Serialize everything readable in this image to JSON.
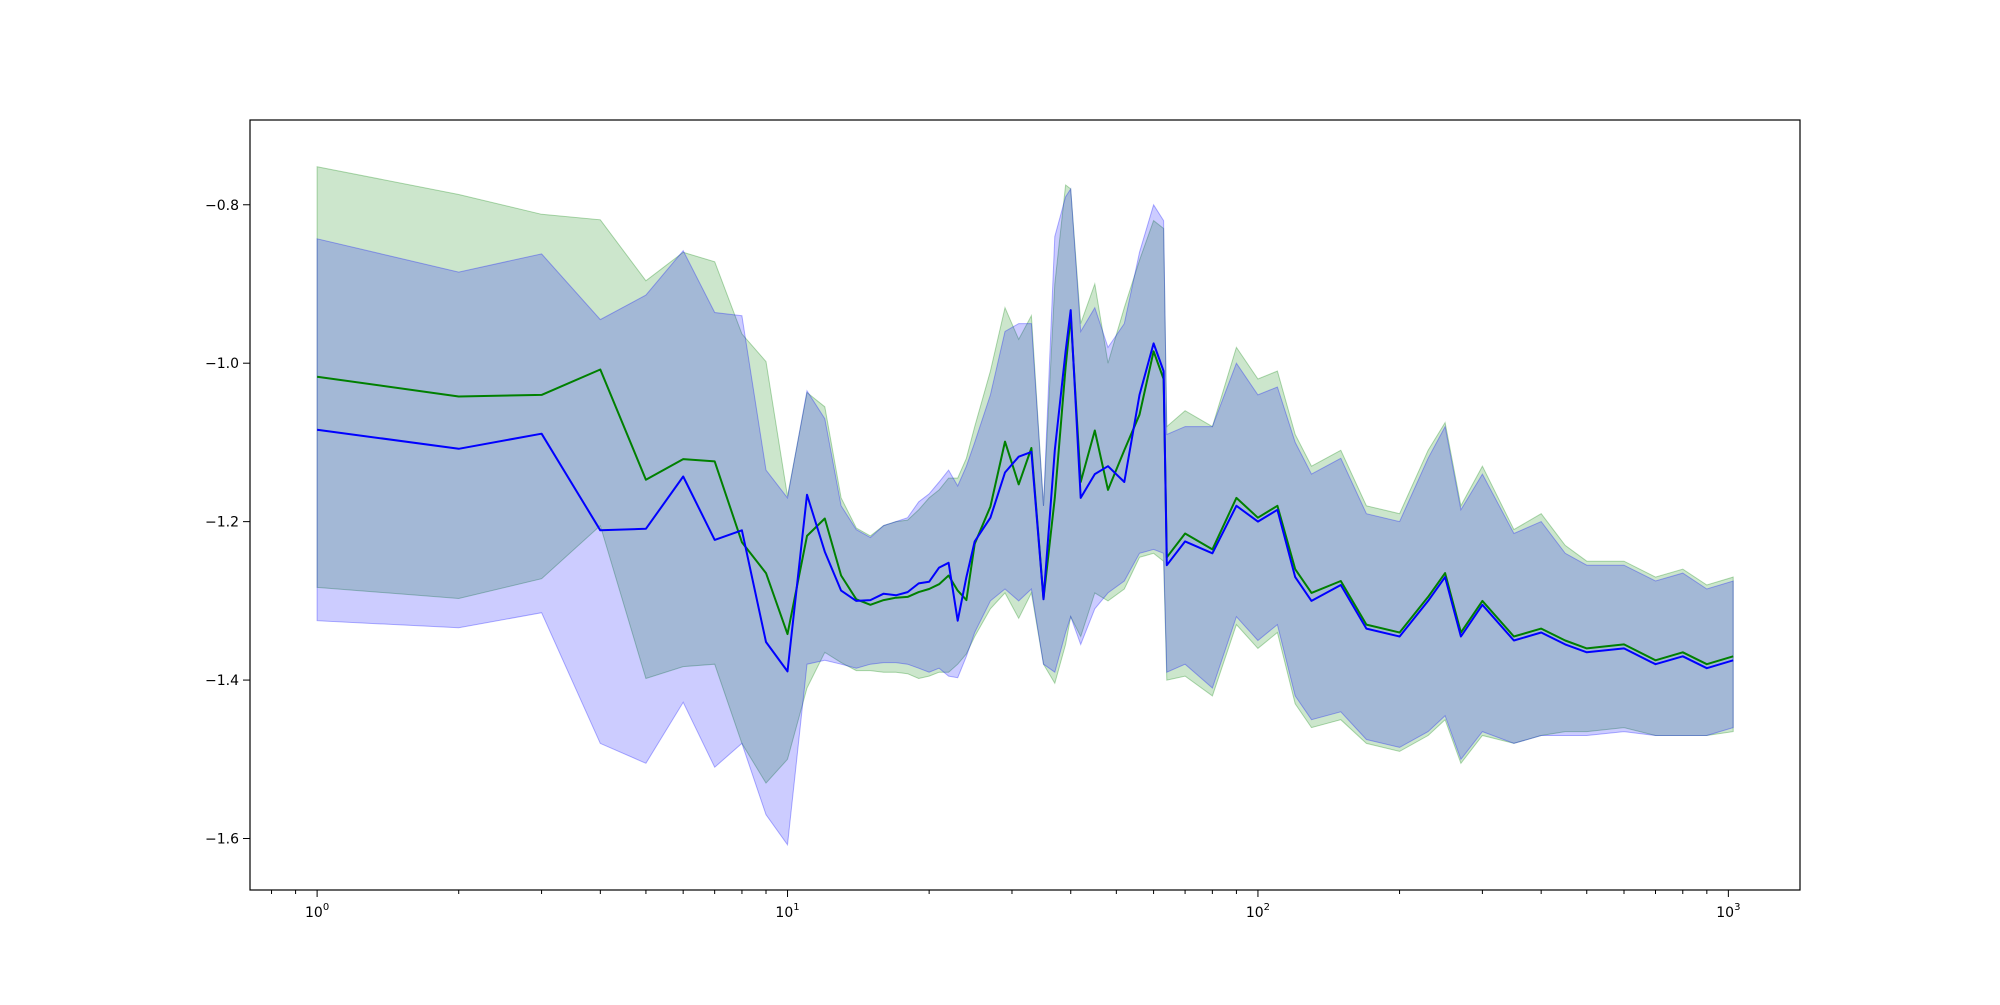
{
  "chart_data": {
    "type": "line",
    "title": "",
    "xlabel": "",
    "ylabel": "",
    "xscale": "log",
    "xlim": [
      0.72,
      1420
    ],
    "ylim": [
      -1.665,
      -0.693
    ],
    "grid": false,
    "legend": "none",
    "x_ticks": [
      {
        "value": 1,
        "base": "10",
        "exp": "0"
      },
      {
        "value": 10,
        "base": "10",
        "exp": "1"
      },
      {
        "value": 100,
        "base": "10",
        "exp": "2"
      },
      {
        "value": 1000,
        "base": "10",
        "exp": "3"
      }
    ],
    "y_ticks": [
      {
        "value": -0.8,
        "label": "−0.8"
      },
      {
        "value": -1.0,
        "label": "−1.0"
      },
      {
        "value": -1.2,
        "label": "−1.2"
      },
      {
        "value": -1.4,
        "label": "−1.4"
      },
      {
        "value": -1.6,
        "label": "−1.6"
      }
    ],
    "series": [
      {
        "color": "#008000",
        "band_color": "#008000",
        "band_opacity": 0.2,
        "x": [
          1,
          2,
          3,
          4,
          5,
          6,
          7,
          8,
          9,
          10,
          11,
          12,
          13,
          14,
          15,
          16,
          17,
          18,
          19,
          20,
          21,
          22,
          23,
          24,
          25,
          27,
          29,
          31,
          33,
          35,
          37,
          39,
          40,
          42,
          45,
          48,
          52,
          56,
          60,
          63,
          64,
          70,
          80,
          90,
          100,
          110,
          120,
          130,
          150,
          170,
          200,
          230,
          250,
          270,
          300,
          350,
          400,
          450,
          500,
          600,
          700,
          800,
          900,
          1024
        ],
        "mean": [
          -1.017,
          -1.042,
          -1.04,
          -1.008,
          -1.147,
          -1.121,
          -1.124,
          -1.226,
          -1.265,
          -1.342,
          -1.218,
          -1.196,
          -1.268,
          -1.298,
          -1.305,
          -1.299,
          -1.296,
          -1.295,
          -1.289,
          -1.285,
          -1.279,
          -1.268,
          -1.287,
          -1.299,
          -1.228,
          -1.181,
          -1.099,
          -1.153,
          -1.107,
          -1.297,
          -1.17,
          -1.005,
          -0.94,
          -1.15,
          -1.085,
          -1.16,
          -1.11,
          -1.065,
          -0.985,
          -1.02,
          -1.245,
          -1.215,
          -1.235,
          -1.17,
          -1.195,
          -1.18,
          -1.26,
          -1.29,
          -1.275,
          -1.33,
          -1.34,
          -1.295,
          -1.265,
          -1.34,
          -1.3,
          -1.345,
          -1.335,
          -1.35,
          -1.36,
          -1.355,
          -1.375,
          -1.365,
          -1.38,
          -1.37
        ],
        "lower": [
          -1.283,
          -1.297,
          -1.272,
          -1.205,
          -1.398,
          -1.383,
          -1.38,
          -1.48,
          -1.53,
          -1.5,
          -1.41,
          -1.365,
          -1.378,
          -1.388,
          -1.388,
          -1.39,
          -1.39,
          -1.392,
          -1.398,
          -1.395,
          -1.39,
          -1.39,
          -1.38,
          -1.367,
          -1.345,
          -1.31,
          -1.29,
          -1.322,
          -1.29,
          -1.38,
          -1.404,
          -1.355,
          -1.32,
          -1.345,
          -1.29,
          -1.3,
          -1.285,
          -1.245,
          -1.24,
          -1.25,
          -1.4,
          -1.395,
          -1.42,
          -1.33,
          -1.36,
          -1.34,
          -1.43,
          -1.46,
          -1.45,
          -1.48,
          -1.49,
          -1.47,
          -1.45,
          -1.505,
          -1.47,
          -1.48,
          -1.47,
          -1.465,
          -1.465,
          -1.46,
          -1.47,
          -1.47,
          -1.47,
          -1.465
        ],
        "upper": [
          -0.752,
          -0.787,
          -0.812,
          -0.819,
          -0.896,
          -0.86,
          -0.872,
          -0.963,
          -0.998,
          -1.168,
          -1.037,
          -1.055,
          -1.17,
          -1.208,
          -1.218,
          -1.205,
          -1.2,
          -1.198,
          -1.185,
          -1.17,
          -1.16,
          -1.145,
          -1.145,
          -1.12,
          -1.08,
          -1.01,
          -0.93,
          -0.97,
          -0.94,
          -1.18,
          -0.9,
          -0.775,
          -0.78,
          -0.95,
          -0.9,
          -1.0,
          -0.93,
          -0.87,
          -0.82,
          -0.83,
          -1.08,
          -1.06,
          -1.08,
          -0.98,
          -1.02,
          -1.01,
          -1.09,
          -1.13,
          -1.11,
          -1.18,
          -1.19,
          -1.11,
          -1.075,
          -1.18,
          -1.13,
          -1.21,
          -1.19,
          -1.23,
          -1.25,
          -1.25,
          -1.27,
          -1.26,
          -1.28,
          -1.27
        ]
      },
      {
        "color": "#0000ff",
        "band_color": "#0000ff",
        "band_opacity": 0.2,
        "x": [
          1,
          2,
          3,
          4,
          5,
          6,
          7,
          8,
          9,
          10,
          11,
          12,
          13,
          14,
          15,
          16,
          17,
          18,
          19,
          20,
          21,
          22,
          23,
          24,
          25,
          27,
          29,
          31,
          33,
          35,
          37,
          39,
          40,
          42,
          45,
          48,
          52,
          56,
          60,
          63,
          64,
          70,
          80,
          90,
          100,
          110,
          120,
          130,
          150,
          170,
          200,
          230,
          250,
          270,
          300,
          350,
          400,
          450,
          500,
          600,
          700,
          800,
          900,
          1024
        ],
        "mean": [
          -1.084,
          -1.108,
          -1.089,
          -1.211,
          -1.209,
          -1.143,
          -1.223,
          -1.211,
          -1.352,
          -1.389,
          -1.166,
          -1.238,
          -1.287,
          -1.3,
          -1.299,
          -1.291,
          -1.293,
          -1.289,
          -1.278,
          -1.276,
          -1.258,
          -1.252,
          -1.325,
          -1.27,
          -1.225,
          -1.195,
          -1.138,
          -1.118,
          -1.112,
          -1.298,
          -1.11,
          -0.985,
          -0.933,
          -1.17,
          -1.14,
          -1.13,
          -1.15,
          -1.04,
          -0.975,
          -1.01,
          -1.255,
          -1.225,
          -1.24,
          -1.18,
          -1.2,
          -1.185,
          -1.27,
          -1.3,
          -1.28,
          -1.335,
          -1.345,
          -1.3,
          -1.27,
          -1.345,
          -1.305,
          -1.35,
          -1.34,
          -1.355,
          -1.365,
          -1.36,
          -1.38,
          -1.37,
          -1.385,
          -1.375
        ],
        "lower": [
          -1.325,
          -1.334,
          -1.315,
          -1.48,
          -1.505,
          -1.428,
          -1.51,
          -1.48,
          -1.57,
          -1.608,
          -1.38,
          -1.375,
          -1.38,
          -1.385,
          -1.38,
          -1.378,
          -1.378,
          -1.38,
          -1.385,
          -1.39,
          -1.385,
          -1.395,
          -1.397,
          -1.37,
          -1.34,
          -1.3,
          -1.285,
          -1.3,
          -1.285,
          -1.38,
          -1.39,
          -1.34,
          -1.32,
          -1.355,
          -1.31,
          -1.29,
          -1.275,
          -1.24,
          -1.235,
          -1.24,
          -1.39,
          -1.38,
          -1.41,
          -1.32,
          -1.35,
          -1.33,
          -1.42,
          -1.45,
          -1.44,
          -1.475,
          -1.485,
          -1.465,
          -1.445,
          -1.5,
          -1.465,
          -1.48,
          -1.47,
          -1.47,
          -1.47,
          -1.465,
          -1.47,
          -1.47,
          -1.47,
          -1.46
        ],
        "upper": [
          -0.843,
          -0.885,
          -0.862,
          -0.945,
          -0.914,
          -0.858,
          -0.936,
          -0.94,
          -1.135,
          -1.17,
          -1.035,
          -1.07,
          -1.18,
          -1.21,
          -1.22,
          -1.205,
          -1.2,
          -1.195,
          -1.175,
          -1.165,
          -1.15,
          -1.135,
          -1.155,
          -1.13,
          -1.1,
          -1.04,
          -0.96,
          -0.95,
          -0.95,
          -1.18,
          -0.84,
          -0.79,
          -0.78,
          -0.96,
          -0.93,
          -0.98,
          -0.95,
          -0.86,
          -0.8,
          -0.82,
          -1.09,
          -1.08,
          -1.08,
          -1.0,
          -1.04,
          -1.03,
          -1.1,
          -1.14,
          -1.12,
          -1.19,
          -1.2,
          -1.12,
          -1.08,
          -1.185,
          -1.14,
          -1.215,
          -1.2,
          -1.24,
          -1.255,
          -1.255,
          -1.275,
          -1.265,
          -1.285,
          -1.275
        ]
      }
    ]
  }
}
